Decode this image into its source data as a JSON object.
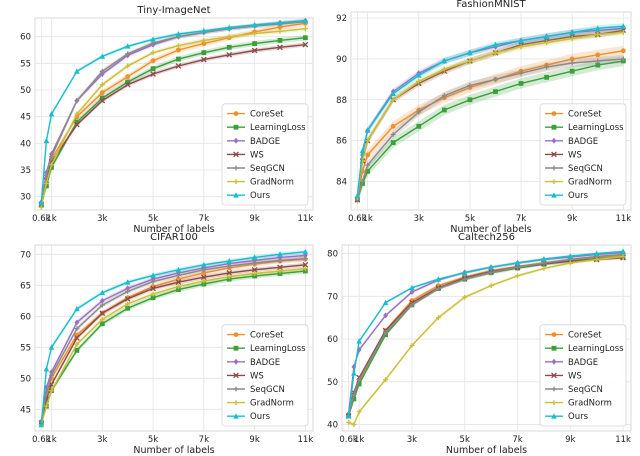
{
  "chart_data": [
    {
      "type": "line",
      "title": "Tiny-ImageNet",
      "xlabel": "Number of labels",
      "ylabel": "",
      "xlim": [
        0.35,
        11.3
      ],
      "ylim": [
        27.5,
        63.5
      ],
      "xticks": [
        0.6,
        1,
        3,
        5,
        7,
        9,
        11
      ],
      "xtick_labels": [
        "0.6k",
        "1k",
        "3k",
        "5k",
        "7k",
        "9k",
        "11k"
      ],
      "yticks": [
        30,
        35,
        40,
        45,
        50,
        55,
        60
      ],
      "legend_position": "bottom-right",
      "grid": true,
      "x": [
        0.6,
        0.8,
        1,
        2,
        3,
        4,
        5,
        6,
        7,
        8,
        9,
        10,
        11
      ],
      "series": [
        {
          "name": "CoreSet",
          "color": "#f28e2b",
          "marker": "circle",
          "values": [
            28.5,
            33.5,
            37.0,
            45.0,
            49.5,
            52.5,
            55.5,
            57.5,
            58.7,
            59.8,
            60.9,
            61.8,
            62.5
          ],
          "band": 0.5
        },
        {
          "name": "LearningLoss",
          "color": "#3aa13a",
          "marker": "square",
          "values": [
            28.5,
            32.0,
            35.5,
            44.0,
            48.5,
            51.5,
            54.0,
            55.8,
            57.0,
            58.0,
            58.7,
            59.3,
            59.8
          ],
          "band": 0.5
        },
        {
          "name": "BADGE",
          "color": "#9b6fc4",
          "marker": "diamond",
          "values": [
            29.0,
            34.5,
            38.0,
            48.0,
            53.0,
            56.5,
            58.5,
            60.0,
            60.8,
            61.5,
            62.0,
            62.6,
            63.0
          ],
          "band": 0.4
        },
        {
          "name": "WS",
          "color": "#8c4b4b",
          "marker": "x",
          "values": [
            28.5,
            33.0,
            36.5,
            43.5,
            48.0,
            51.0,
            53.0,
            54.5,
            55.7,
            56.6,
            57.4,
            58.0,
            58.5
          ],
          "band": 0.4
        },
        {
          "name": "SeqGCN",
          "color": "#8a8a8a",
          "marker": "plus",
          "values": [
            28.8,
            34.0,
            37.5,
            48.0,
            53.5,
            56.8,
            58.8,
            60.0,
            60.8,
            61.5,
            62.0,
            62.4,
            62.8
          ],
          "band": 0.4
        },
        {
          "name": "GradNorm",
          "color": "#c8c038",
          "marker": "plus",
          "values": [
            28.0,
            32.5,
            36.0,
            45.5,
            51.0,
            54.5,
            57.0,
            58.3,
            59.3,
            60.0,
            60.6,
            61.0,
            61.5
          ],
          "band": 0.4
        },
        {
          "name": "Ours",
          "color": "#17becf",
          "marker": "triangle",
          "values": [
            28.8,
            40.5,
            45.5,
            53.5,
            56.3,
            58.2,
            59.5,
            60.5,
            61.1,
            61.7,
            62.2,
            62.6,
            63.0
          ],
          "band": 0.3
        }
      ]
    },
    {
      "type": "line",
      "title": "FashionMNIST",
      "xlabel": "Number of labels",
      "ylabel": "",
      "xlim": [
        0.35,
        11.3
      ],
      "ylim": [
        82.6,
        92.3
      ],
      "xticks": [
        0.6,
        1,
        3,
        5,
        7,
        9,
        11
      ],
      "xtick_labels": [
        "0.6k",
        "1k",
        "3k",
        "5k",
        "7k",
        "9k",
        "11k"
      ],
      "yticks": [
        84,
        86,
        88,
        90,
        92
      ],
      "legend_position": "bottom-right",
      "grid": true,
      "x": [
        0.6,
        0.8,
        1,
        2,
        3,
        4,
        5,
        6,
        7,
        8,
        9,
        10,
        11
      ],
      "series": [
        {
          "name": "CoreSet",
          "color": "#f28e2b",
          "marker": "circle",
          "values": [
            83.1,
            84.5,
            85.3,
            86.7,
            87.5,
            88.1,
            88.6,
            89.0,
            89.4,
            89.7,
            90.0,
            90.2,
            90.4
          ],
          "band": 0.25
        },
        {
          "name": "LearningLoss",
          "color": "#3aa13a",
          "marker": "square",
          "values": [
            83.1,
            83.9,
            84.5,
            85.9,
            86.7,
            87.5,
            88.0,
            88.4,
            88.8,
            89.1,
            89.4,
            89.7,
            89.9
          ],
          "band": 0.25
        },
        {
          "name": "BADGE",
          "color": "#9b6fc4",
          "marker": "diamond",
          "values": [
            83.2,
            85.3,
            86.5,
            88.4,
            89.3,
            89.9,
            90.3,
            90.6,
            90.9,
            91.1,
            91.3,
            91.4,
            91.5
          ],
          "band": 0.15
        },
        {
          "name": "WS",
          "color": "#8c4b4b",
          "marker": "x",
          "values": [
            83.1,
            85.0,
            86.0,
            88.0,
            88.8,
            89.4,
            89.9,
            90.3,
            90.7,
            90.9,
            91.1,
            91.2,
            91.4
          ],
          "band": 0.15
        },
        {
          "name": "SeqGCN",
          "color": "#8a8a8a",
          "marker": "plus",
          "values": [
            83.1,
            84.0,
            84.8,
            86.3,
            87.4,
            88.2,
            88.7,
            89.0,
            89.3,
            89.6,
            89.8,
            89.9,
            90.0
          ],
          "band": 0.2
        },
        {
          "name": "GradNorm",
          "color": "#c8c038",
          "marker": "plus",
          "values": [
            83.2,
            85.0,
            86.0,
            88.0,
            88.9,
            89.5,
            89.9,
            90.3,
            90.6,
            90.8,
            91.0,
            91.2,
            91.3
          ],
          "band": 0.15
        },
        {
          "name": "Ours",
          "color": "#17becf",
          "marker": "triangle",
          "values": [
            83.3,
            85.5,
            86.5,
            88.3,
            89.2,
            89.9,
            90.3,
            90.7,
            90.9,
            91.1,
            91.3,
            91.5,
            91.6
          ],
          "band": 0.15
        }
      ]
    },
    {
      "type": "line",
      "title": "CIFAR100",
      "xlabel": "Number of labels",
      "ylabel": "",
      "xlim": [
        0.35,
        11.3
      ],
      "ylim": [
        41.5,
        71.5
      ],
      "xticks": [
        0.6,
        1,
        3,
        5,
        7,
        9,
        11
      ],
      "xtick_labels": [
        "0.6k",
        "1k",
        "3k",
        "5k",
        "7k",
        "9k",
        "11k"
      ],
      "yticks": [
        45,
        50,
        55,
        60,
        65,
        70
      ],
      "legend_position": "bottom-right",
      "grid": true,
      "x": [
        0.6,
        0.8,
        1,
        2,
        3,
        4,
        5,
        6,
        7,
        8,
        9,
        10,
        11
      ],
      "series": [
        {
          "name": "CoreSet",
          "color": "#f28e2b",
          "marker": "circle",
          "values": [
            43.0,
            47.0,
            50.0,
            57.0,
            60.5,
            63.0,
            64.8,
            66.0,
            67.0,
            67.8,
            68.4,
            68.9,
            69.2
          ],
          "band": 0.4
        },
        {
          "name": "LearningLoss",
          "color": "#3aa13a",
          "marker": "square",
          "values": [
            42.8,
            45.5,
            48.0,
            54.5,
            58.8,
            61.3,
            63.0,
            64.3,
            65.2,
            66.0,
            66.5,
            66.9,
            67.3
          ],
          "band": 0.4
        },
        {
          "name": "BADGE",
          "color": "#9b6fc4",
          "marker": "diamond",
          "values": [
            43.0,
            48.5,
            51.0,
            59.0,
            62.5,
            64.5,
            66.0,
            67.0,
            67.8,
            68.5,
            69.0,
            69.5,
            69.8
          ],
          "band": 0.35
        },
        {
          "name": "WS",
          "color": "#8c4b4b",
          "marker": "x",
          "values": [
            42.8,
            46.5,
            49.0,
            56.5,
            60.5,
            62.8,
            64.5,
            65.5,
            66.3,
            67.0,
            67.5,
            67.9,
            68.3
          ],
          "band": 0.35
        },
        {
          "name": "SeqGCN",
          "color": "#8a8a8a",
          "marker": "plus",
          "values": [
            43.0,
            47.5,
            50.5,
            58.0,
            61.8,
            64.0,
            65.6,
            66.6,
            67.5,
            68.1,
            68.6,
            69.0,
            69.3
          ],
          "band": 0.35
        },
        {
          "name": "GradNorm",
          "color": "#c8c038",
          "marker": "plus",
          "values": [
            42.5,
            45.5,
            48.0,
            55.5,
            59.5,
            62.0,
            63.6,
            64.8,
            65.7,
            66.4,
            66.9,
            67.3,
            67.7
          ],
          "band": 0.35
        },
        {
          "name": "Ours",
          "color": "#17becf",
          "marker": "triangle",
          "values": [
            42.5,
            51.5,
            55.0,
            61.2,
            63.8,
            65.5,
            66.6,
            67.5,
            68.3,
            68.9,
            69.5,
            70.0,
            70.4
          ],
          "band": 0.3
        }
      ]
    },
    {
      "type": "line",
      "title": "Caltech256",
      "xlabel": "Number of labels",
      "ylabel": "",
      "xlim": [
        0.35,
        11.3
      ],
      "ylim": [
        38.5,
        82.0
      ],
      "xticks": [
        0.6,
        1,
        3,
        5,
        7,
        9,
        11
      ],
      "xtick_labels": [
        "0.6k",
        "1k",
        "3k",
        "5k",
        "7k",
        "9k",
        "11k"
      ],
      "yticks": [
        40,
        50,
        60,
        70,
        80
      ],
      "legend_position": "bottom-right",
      "grid": true,
      "x": [
        0.6,
        0.8,
        1,
        2,
        3,
        4,
        5,
        6,
        7,
        8,
        9,
        10,
        11
      ],
      "series": [
        {
          "name": "CoreSet",
          "color": "#f28e2b",
          "marker": "circle",
          "values": [
            42.0,
            47.0,
            50.0,
            62.0,
            69.0,
            72.5,
            74.5,
            76.0,
            77.0,
            77.8,
            78.5,
            79.0,
            79.5
          ],
          "band": 0.4
        },
        {
          "name": "LearningLoss",
          "color": "#3aa13a",
          "marker": "square",
          "values": [
            42.0,
            46.0,
            49.5,
            61.0,
            68.0,
            71.8,
            74.0,
            75.5,
            76.6,
            77.5,
            78.2,
            78.8,
            79.2
          ],
          "band": 0.4
        },
        {
          "name": "BADGE",
          "color": "#9b6fc4",
          "marker": "diamond",
          "values": [
            42.5,
            53.5,
            57.5,
            65.5,
            71.0,
            73.8,
            75.6,
            76.8,
            77.8,
            78.6,
            79.2,
            79.8,
            80.2
          ],
          "band": 0.35
        },
        {
          "name": "WS",
          "color": "#8c4b4b",
          "marker": "x",
          "values": [
            42.0,
            47.5,
            51.0,
            62.0,
            68.5,
            72.0,
            74.3,
            75.8,
            76.8,
            77.6,
            78.2,
            78.6,
            79.0
          ],
          "band": 0.35
        },
        {
          "name": "SeqGCN",
          "color": "#8a8a8a",
          "marker": "plus",
          "values": [
            42.0,
            47.0,
            50.5,
            61.5,
            68.0,
            71.8,
            74.0,
            75.6,
            76.8,
            77.8,
            78.6,
            79.3,
            79.8
          ],
          "band": 0.35
        },
        {
          "name": "GradNorm",
          "color": "#c8c038",
          "marker": "plus",
          "values": [
            40.5,
            40.0,
            43.0,
            50.5,
            58.5,
            65.0,
            69.8,
            72.5,
            74.8,
            76.5,
            77.8,
            78.6,
            79.3
          ],
          "band": 0.35
        },
        {
          "name": "Ours",
          "color": "#17becf",
          "marker": "triangle",
          "values": [
            42.0,
            52.0,
            59.5,
            68.5,
            72.0,
            74.0,
            75.5,
            76.8,
            77.8,
            78.7,
            79.4,
            80.0,
            80.5
          ],
          "band": 0.3
        }
      ]
    }
  ]
}
